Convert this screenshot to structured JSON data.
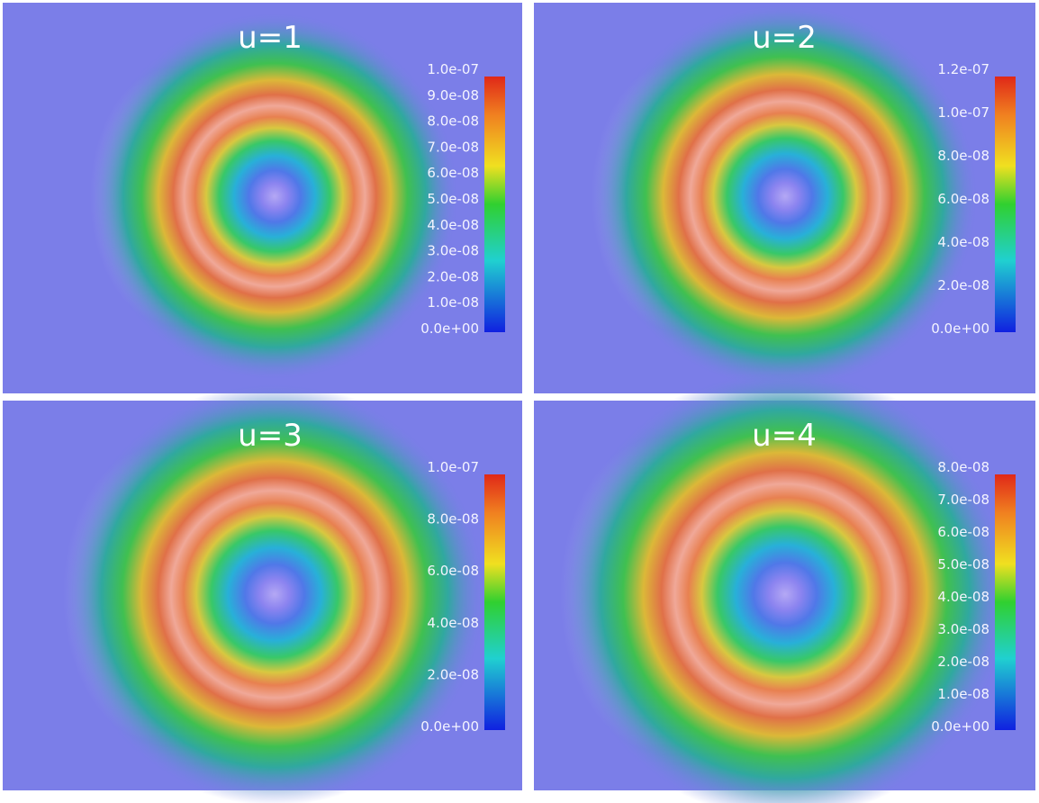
{
  "panels": [
    {
      "title": "u=1",
      "colorbar_labels": [
        "1.0e-07",
        "9.0e-08",
        "8.0e-08",
        "7.0e-08",
        "6.0e-08",
        "5.0e-08",
        "4.0e-08",
        "3.0e-08",
        "2.0e-08",
        "1.0e-08",
        "0.0e+00"
      ]
    },
    {
      "title": "u=2",
      "colorbar_labels": [
        "1.2e-07",
        "1.0e-07",
        "8.0e-08",
        "6.0e-08",
        "4.0e-08",
        "2.0e-08",
        "0.0e+00"
      ]
    },
    {
      "title": "u=3",
      "colorbar_labels": [
        "1.0e-07",
        "8.0e-08",
        "6.0e-08",
        "4.0e-08",
        "2.0e-08",
        "0.0e+00"
      ]
    },
    {
      "title": "u=4",
      "colorbar_labels": [
        "8.0e-08",
        "7.0e-08",
        "6.0e-08",
        "5.0e-08",
        "4.0e-08",
        "3.0e-08",
        "2.0e-08",
        "1.0e-08",
        "0.0e+00"
      ]
    }
  ]
}
